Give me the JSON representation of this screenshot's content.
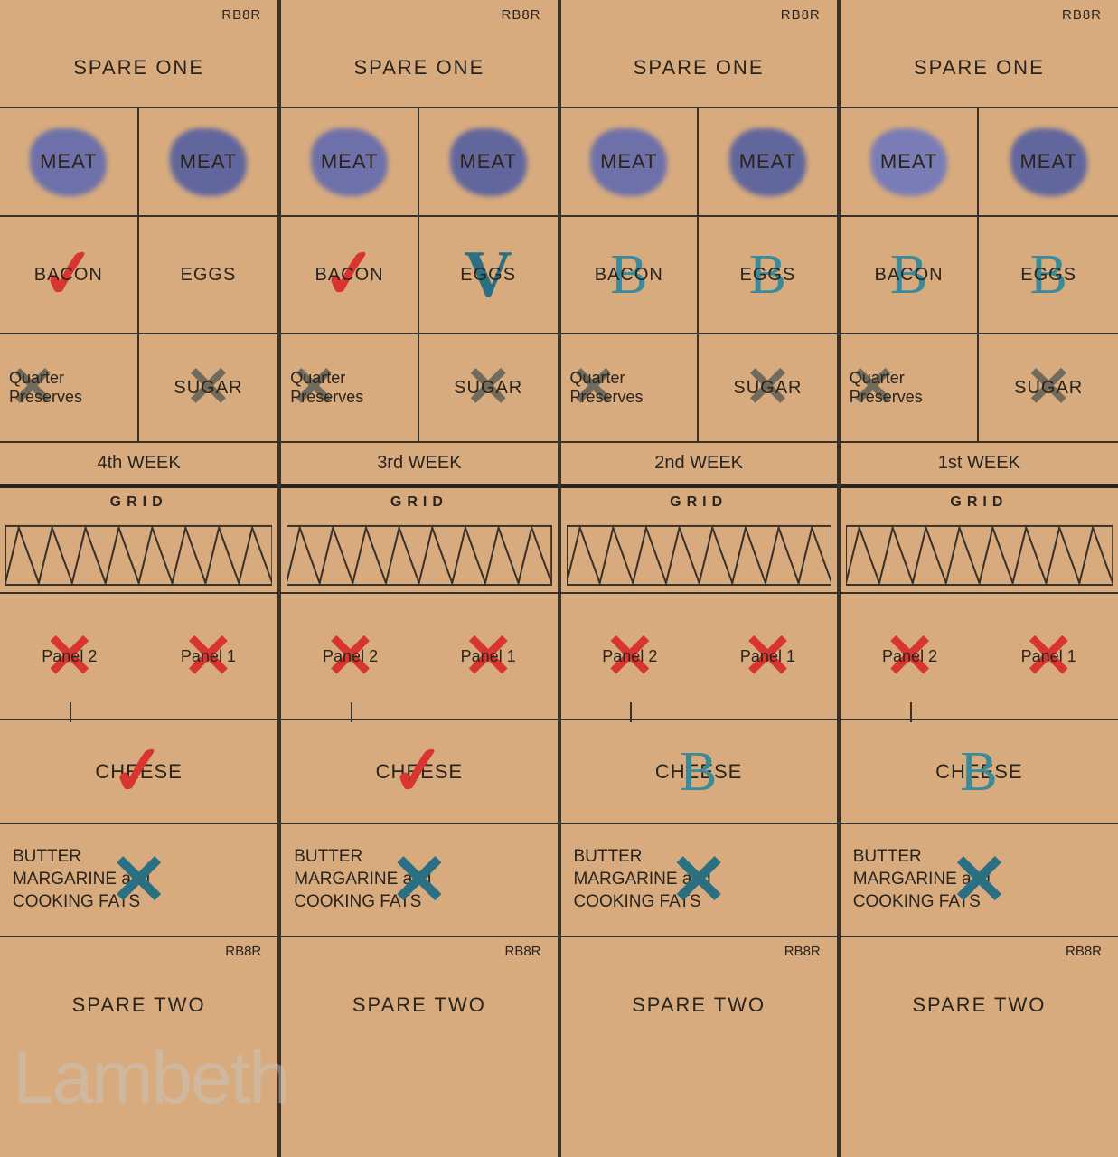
{
  "code": "RB8R",
  "spare_one": "SPARE ONE",
  "spare_two": "SPARE TWO",
  "meat": "MEAT",
  "bacon": "BACON",
  "eggs": "EGGS",
  "quarter_preserves_l1": "Quarter",
  "quarter_preserves_l2": "Preserves",
  "sugar": "SUGAR",
  "grid": "GRID",
  "panel1": "Panel 1",
  "panel2": "Panel 2",
  "cheese": "CHEESE",
  "butter_l1": "BUTTER",
  "butter_l2": "MARGARINE and",
  "butter_l3": "COOKING FATS",
  "watermark": "Lambeth",
  "weeks": [
    {
      "label": "4th WEEK"
    },
    {
      "label": "3rd WEEK"
    },
    {
      "label": "2nd WEEK"
    },
    {
      "label": "1st WEEK"
    }
  ],
  "colors": {
    "paper": "#d7ab7e",
    "ink": "#2a241c",
    "stamp_blue": "#3a4fa8",
    "red_mark": "#d93530",
    "blue_mark": "#2b6f82",
    "teal_mark": "#3a8a9a",
    "gray_mark": "#5a5a52"
  },
  "marks": {
    "meat_stamps": [
      [
        "#4a5db8",
        "#3a4fa8"
      ],
      [
        "#4a5db8",
        "#3a4fa8"
      ],
      [
        "#4a5db8",
        "#3a4fa8"
      ],
      [
        "#5a6dc8",
        "#3a4fa8"
      ]
    ],
    "bacon_eggs": [
      [
        "check-red",
        ""
      ],
      [
        "check-red",
        "check-blue"
      ],
      [
        "letter-b",
        "letter-b"
      ],
      [
        "letter-b",
        "letter-b"
      ]
    ],
    "preserves_sugar": [
      [
        "x-gray",
        "x-gray"
      ],
      [
        "x-gray",
        "x-gray"
      ],
      [
        "x-gray",
        "x-gray"
      ],
      [
        "x-gray",
        "x-gray"
      ]
    ],
    "panels": [
      [
        "x-red",
        "x-red"
      ],
      [
        "x-red",
        "x-red"
      ],
      [
        "x-red",
        "x-red"
      ],
      [
        "x-red",
        "x-red"
      ]
    ],
    "cheese": [
      "check-red",
      "check-red",
      "letter-b",
      "letter-b"
    ],
    "butter": [
      "x-blue",
      "x-blue",
      "x-blue",
      "x-blue"
    ]
  },
  "zigzag": {
    "stroke": "#3a3128",
    "stroke_width": 2
  }
}
